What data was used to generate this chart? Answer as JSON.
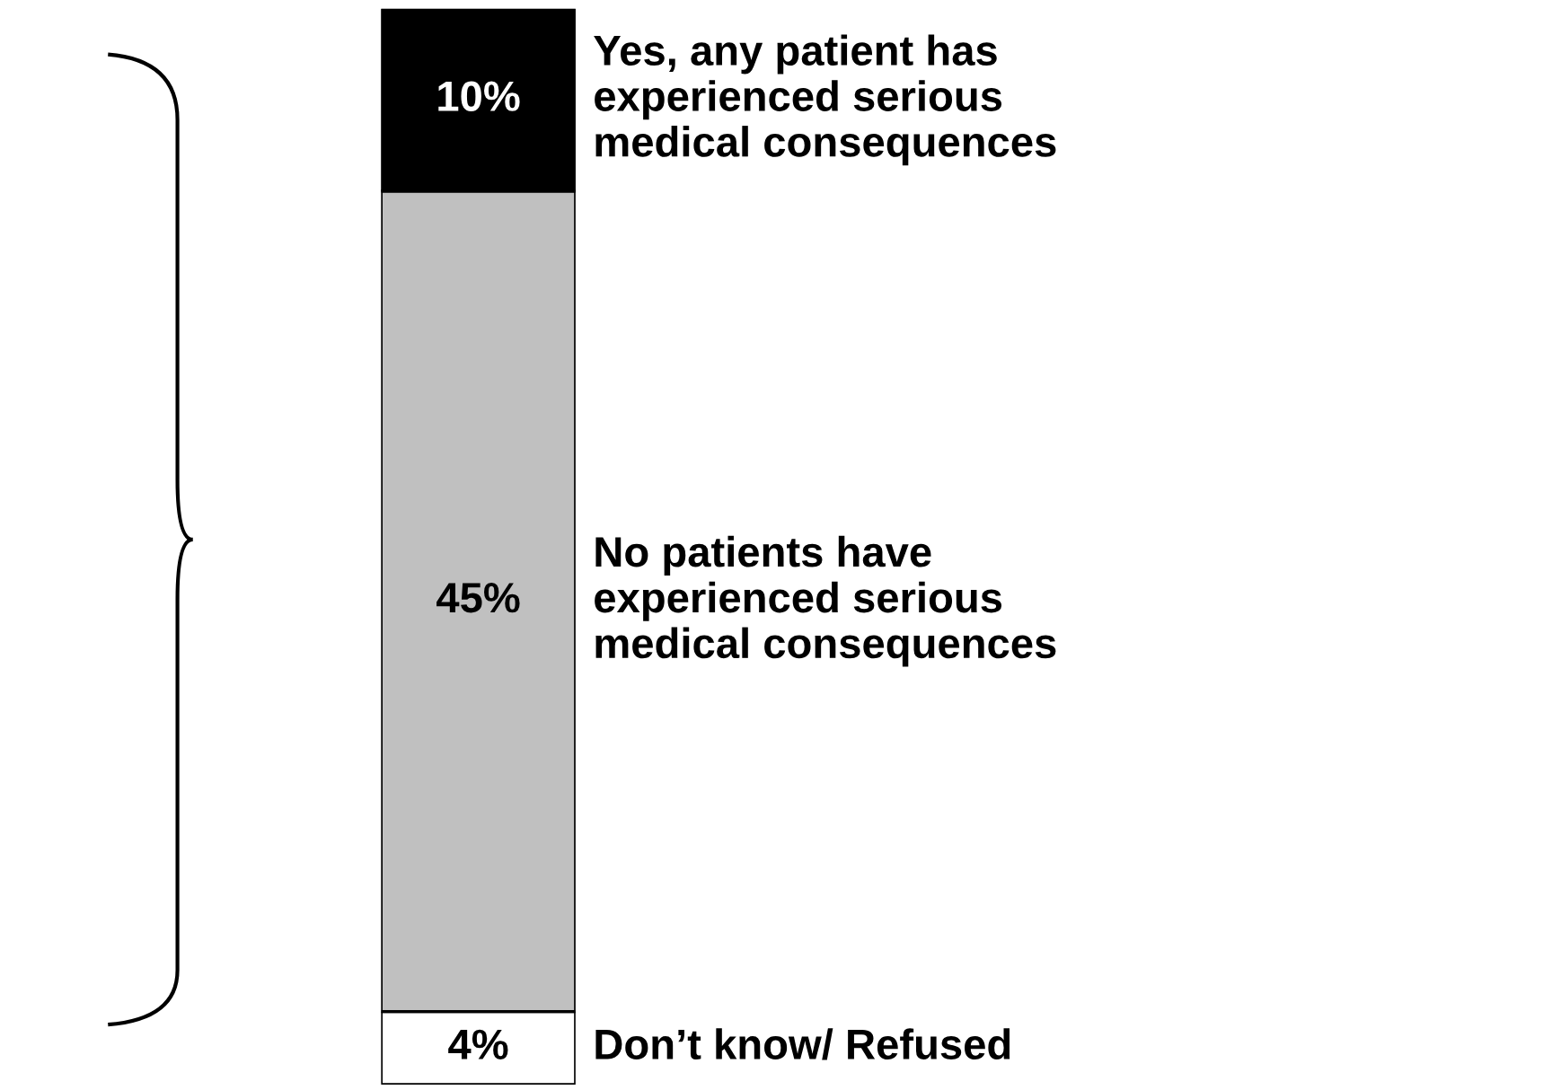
{
  "chart_data": {
    "type": "bar",
    "stacked": true,
    "categories": [
      null
    ],
    "legend": false,
    "series": [
      {
        "name": "Don’t know/ Refused",
        "color": "#ffffff",
        "values": [
          4
        ],
        "value_labels": [
          "4%"
        ]
      },
      {
        "name": "No patients have experienced serious medical consequences",
        "color": "#c0c0c0",
        "values": [
          45
        ],
        "value_labels": [
          "45%"
        ]
      },
      {
        "name": "Yes, any patient has experienced serious medical consequences",
        "color": "#000000",
        "values": [
          10
        ],
        "value_labels": [
          "10%"
        ]
      }
    ]
  }
}
